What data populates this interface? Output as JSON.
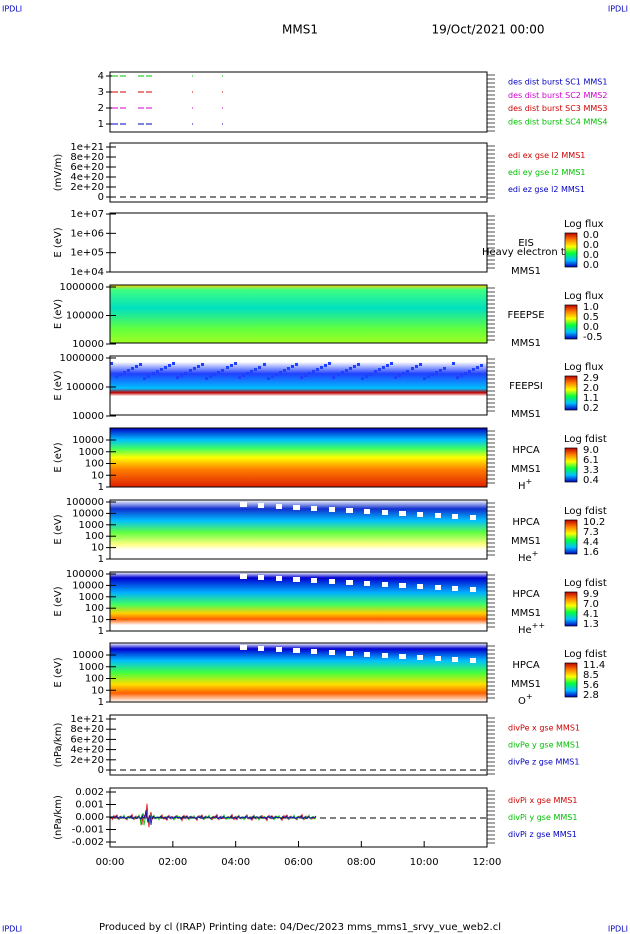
{
  "header": {
    "left": "IPDLI",
    "right": "IPDLI",
    "mission": "MMS1",
    "date": "19/Oct/2021 00:00"
  },
  "panels": [
    {
      "yticks": [
        "4",
        "3",
        "2",
        "1"
      ],
      "legend": [
        {
          "text": "des dist burst SC1 MMS1",
          "color": "#0000c0"
        },
        {
          "text": "des dist burst SC2 MMS2",
          "color": "#d000d0"
        },
        {
          "text": "des dist burst SC3 MMS3",
          "color": "#d00000"
        },
        {
          "text": "des dist burst SC4 MMS4",
          "color": "#00c000"
        }
      ]
    },
    {
      "ylabel": "(mV/m)",
      "yticks": [
        "1e+21",
        "8e+20",
        "6e+20",
        "4e+20",
        "2e+20",
        "0"
      ],
      "legend": [
        {
          "text": "edi ex gse l2 MMS1",
          "color": "#d00000"
        },
        {
          "text": "edi ey gse l2 MMS1",
          "color": "#00c000"
        },
        {
          "text": "edi ez gse l2 MMS1",
          "color": "#0000c0"
        }
      ]
    },
    {
      "ylabel": "E (eV)",
      "yticks": [
        "1e+07",
        "1e+06",
        "1e+05",
        "1e+04"
      ],
      "instrument": "EIS",
      "spacecraft": "MMS1",
      "note": "Heavy electron to",
      "colorbar": {
        "title": "Log flux",
        "labels": [
          "0.0",
          "0.0",
          "0.0",
          "0.0"
        ]
      }
    },
    {
      "ylabel": "E (eV)",
      "yticks": [
        "1000000",
        "100000",
        "10000"
      ],
      "instrument": "FEEPSE",
      "spacecraft": "MMS1",
      "colorbar": {
        "title": "Log flux",
        "labels": [
          "1.0",
          "0.5",
          "0.0",
          "-0.5"
        ]
      }
    },
    {
      "ylabel": "E (eV)",
      "yticks": [
        "1000000",
        "100000",
        "10000"
      ],
      "instrument": "FEEPSI",
      "spacecraft": "MMS1",
      "colorbar": {
        "title": "Log flux",
        "labels": [
          "2.9",
          "2.0",
          "1.1",
          "0.2"
        ]
      }
    },
    {
      "ylabel": "E (eV)",
      "yticks": [
        "10000",
        "1000",
        "100",
        "10",
        "1"
      ],
      "instrument": "HPCA",
      "spacecraft": "MMS1",
      "species": {
        "base": "H",
        "sup": "+"
      },
      "colorbar": {
        "title": "Log fdist",
        "labels": [
          "9.0",
          "6.1",
          "3.3",
          "0.4"
        ]
      }
    },
    {
      "ylabel": "E (eV)",
      "yticks": [
        "100000",
        "10000",
        "1000",
        "100",
        "10",
        "1"
      ],
      "instrument": "HPCA",
      "spacecraft": "MMS1",
      "species": {
        "base": "He",
        "sup": "+"
      },
      "colorbar": {
        "title": "Log fdist",
        "labels": [
          "10.2",
          "7.3",
          "4.4",
          "1.6"
        ]
      }
    },
    {
      "ylabel": "E (eV)",
      "yticks": [
        "100000",
        "10000",
        "1000",
        "100",
        "10",
        "1"
      ],
      "instrument": "HPCA",
      "spacecraft": "MMS1",
      "species": {
        "base": "He",
        "sup": "++"
      },
      "colorbar": {
        "title": "Log fdist",
        "labels": [
          "9.9",
          "7.0",
          "4.1",
          "1.3"
        ]
      }
    },
    {
      "ylabel": "E (eV)",
      "yticks": [
        "10000",
        "1000",
        "100",
        "10",
        "1"
      ],
      "instrument": "HPCA",
      "spacecraft": "MMS1",
      "species": {
        "base": "O",
        "sup": "+"
      },
      "colorbar": {
        "title": "Log fdist",
        "labels": [
          "11.4",
          "8.5",
          "5.6",
          "2.8"
        ]
      }
    },
    {
      "ylabel": "(nPa/km)",
      "yticks": [
        "1e+21",
        "8e+20",
        "6e+20",
        "4e+20",
        "2e+20",
        "0"
      ],
      "legend": [
        {
          "text": "divPe x gse MMS1",
          "color": "#d00000"
        },
        {
          "text": "divPe y gse MMS1",
          "color": "#00c000"
        },
        {
          "text": "divPe z gse MMS1",
          "color": "#0000c0"
        }
      ]
    },
    {
      "ylabel": "(nPa/km)",
      "yticks": [
        "0.002",
        "0.001",
        "0.000",
        "-0.001",
        "-0.002"
      ],
      "legend": [
        {
          "text": "divPi x gse MMS1",
          "color": "#d00000"
        },
        {
          "text": "divPi y gse MMS1",
          "color": "#00c000"
        },
        {
          "text": "divPi z gse MMS1",
          "color": "#0000c0"
        }
      ]
    }
  ],
  "xticks": [
    "00:00",
    "02:00",
    "04:00",
    "06:00",
    "08:00",
    "10:00",
    "12:00"
  ],
  "footer": {
    "left": "IPDLI",
    "right": "IPDLI",
    "text": "Produced by cl (IRAP)   Printing date: 04/Dec/2023   mms_mms1_srvy_vue_web2.cl"
  }
}
